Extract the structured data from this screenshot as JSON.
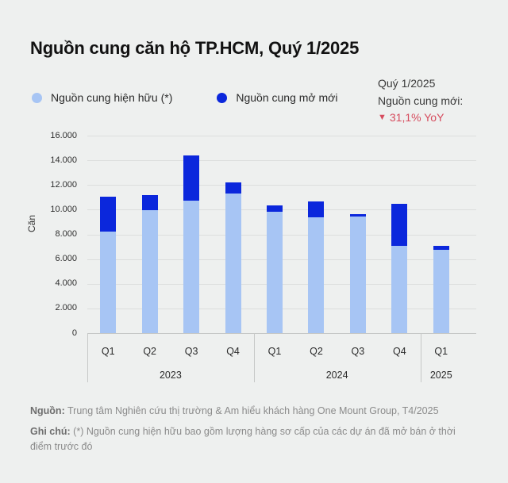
{
  "title": "Nguồn cung căn hộ TP.HCM, Quý 1/2025",
  "legend": {
    "items": [
      {
        "label": "Nguồn cung hiện hữu (*)",
        "color": "#a7c5f4"
      },
      {
        "label": "Nguồn cung mở mới",
        "color": "#0b27dc"
      }
    ]
  },
  "stat": {
    "period": "Quý 1/2025",
    "label": "Nguồn cung mới:",
    "direction_icon": "down-triangle-icon",
    "delta": "31,1% YoY",
    "color": "#d64c5e"
  },
  "footer": {
    "source_label": "Nguồn:",
    "source_text": " Trung tâm Nghiên cứu thị trường & Am hiểu khách hàng One Mount Group, T4/2025",
    "note_label": "Ghi chú:",
    "note_text": " (*) Nguồn cung hiện hữu bao gồm lượng hàng sơ cấp của các dự án đã mở bán ở thời điểm trước đó"
  },
  "chart_data": {
    "type": "bar",
    "stacked": true,
    "title": "Nguồn cung căn hộ TP.HCM, Quý 1/2025",
    "ylabel": "Căn",
    "xlabel": "",
    "ylim": [
      0,
      16000
    ],
    "grid": true,
    "legend_position": "top-left",
    "yticks": {
      "values": [
        16000,
        14000,
        12000,
        10000,
        8000,
        6000,
        4000,
        2000,
        0
      ],
      "labels": [
        "16.000",
        "14.000",
        "12.000",
        "10.000",
        "8.000",
        "6.000",
        "4.000",
        "2.000",
        "0"
      ]
    },
    "groups": [
      {
        "label": "2023",
        "categories": [
          "Q1",
          "Q2",
          "Q3",
          "Q4"
        ]
      },
      {
        "label": "2024",
        "categories": [
          "Q1",
          "Q2",
          "Q3",
          "Q4"
        ]
      },
      {
        "label": "2025",
        "categories": [
          "Q1"
        ]
      }
    ],
    "series": [
      {
        "name": "Nguồn cung hiện hữu (*)",
        "color": "#a7c5f4",
        "values": [
          8250,
          9950,
          10700,
          11300,
          9850,
          9400,
          9450,
          7050,
          6750
        ]
      },
      {
        "name": "Nguồn cung mở mới",
        "color": "#0b27dc",
        "values": [
          2800,
          1250,
          3700,
          900,
          500,
          1250,
          200,
          3450,
          350
        ]
      }
    ],
    "totals": [
      11050,
      11200,
      14400,
      12200,
      10350,
      10650,
      9650,
      10500,
      7100
    ]
  }
}
